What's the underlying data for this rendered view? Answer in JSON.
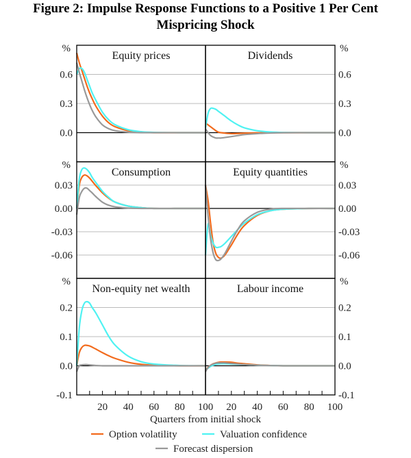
{
  "title_line1": "Figure 2: Impulse Response Functions to a Positive 1 Per Cent",
  "title_line2": "Mispricing Shock",
  "chart_data": {
    "type": "line",
    "unit_label": "%",
    "xlabel": "Quarters from initial shock",
    "xlim": [
      0,
      100
    ],
    "xticks": [
      20,
      40,
      60,
      80,
      100
    ],
    "x": [
      0,
      2,
      4,
      6,
      8,
      10,
      12,
      15,
      20,
      25,
      30,
      40,
      50,
      60,
      80,
      100
    ],
    "legend_position": "bottom",
    "series_meta": [
      {
        "name": "Option volatility",
        "color": "#f26b1d"
      },
      {
        "name": "Valuation confidence",
        "color": "#4ff2f2"
      },
      {
        "name": "Forecast dispersion",
        "color": "#999999"
      }
    ],
    "rows": [
      {
        "ylim": [
          -0.3,
          0.9
        ],
        "yticks": [
          0.6,
          0.3,
          0.0
        ],
        "ytick_labels": [
          "0.6",
          "0.3",
          "0.0"
        ]
      },
      {
        "ylim": [
          -0.09,
          0.06
        ],
        "yticks": [
          0.03,
          0.0,
          -0.03,
          -0.06
        ],
        "ytick_labels": [
          "0.03",
          "0.00",
          "-0.03",
          "-0.06"
        ]
      },
      {
        "ylim": [
          -0.1,
          0.3
        ],
        "yticks": [
          0.2,
          0.1,
          0.0,
          -0.1
        ],
        "ytick_labels": [
          "0.2",
          "0.1",
          "0.0",
          "-0.1"
        ]
      }
    ],
    "panels": [
      {
        "title": "Equity prices",
        "row": 0,
        "col": 0,
        "series": [
          [
            0.82,
            0.72,
            0.64,
            0.56,
            0.48,
            0.41,
            0.35,
            0.27,
            0.17,
            0.1,
            0.06,
            0.02,
            0.005,
            0,
            0,
            0
          ],
          [
            0.6,
            0.66,
            0.66,
            0.62,
            0.55,
            0.48,
            0.41,
            0.33,
            0.21,
            0.13,
            0.08,
            0.03,
            0.01,
            0.003,
            0,
            0
          ],
          [
            0.72,
            0.62,
            0.53,
            0.44,
            0.36,
            0.29,
            0.23,
            0.16,
            0.08,
            0.04,
            0.02,
            0.005,
            0,
            0,
            0,
            0
          ]
        ]
      },
      {
        "title": "Dividends",
        "row": 0,
        "col": 1,
        "series": [
          [
            0.1,
            0.08,
            0.06,
            0.04,
            0.02,
            0.005,
            0,
            -0.005,
            -0.01,
            -0.008,
            -0.005,
            -0.002,
            0,
            0,
            0,
            0
          ],
          [
            0.05,
            0.2,
            0.25,
            0.25,
            0.24,
            0.22,
            0.2,
            0.17,
            0.12,
            0.08,
            0.05,
            0.02,
            0.007,
            0.002,
            0,
            0
          ],
          [
            0.04,
            0.0,
            -0.03,
            -0.045,
            -0.055,
            -0.055,
            -0.055,
            -0.05,
            -0.04,
            -0.03,
            -0.02,
            -0.01,
            -0.004,
            -0.001,
            0,
            0
          ]
        ]
      },
      {
        "title": "Consumption",
        "row": 1,
        "col": 0,
        "series": [
          [
            0,
            0.03,
            0.04,
            0.043,
            0.042,
            0.039,
            0.035,
            0.029,
            0.02,
            0.013,
            0.008,
            0.003,
            0.001,
            0,
            0,
            0
          ],
          [
            0,
            0.038,
            0.05,
            0.052,
            0.05,
            0.046,
            0.04,
            0.033,
            0.022,
            0.014,
            0.008,
            0.003,
            0.001,
            0,
            0,
            0
          ],
          [
            -0.008,
            0.014,
            0.022,
            0.026,
            0.026,
            0.023,
            0.02,
            0.015,
            0.008,
            0.004,
            0.002,
            0.0005,
            0,
            0,
            0,
            0
          ]
        ]
      },
      {
        "title": "Equity quantities",
        "row": 1,
        "col": 1,
        "series": [
          [
            0.03,
            0.01,
            -0.02,
            -0.045,
            -0.058,
            -0.063,
            -0.064,
            -0.06,
            -0.047,
            -0.033,
            -0.022,
            -0.009,
            -0.003,
            -0.001,
            0,
            0
          ],
          [
            -0.06,
            -0.02,
            -0.035,
            -0.045,
            -0.05,
            -0.05,
            -0.049,
            -0.045,
            -0.036,
            -0.027,
            -0.019,
            -0.008,
            -0.003,
            -0.001,
            0,
            0
          ],
          [
            0.03,
            -0.01,
            -0.04,
            -0.058,
            -0.066,
            -0.067,
            -0.065,
            -0.058,
            -0.042,
            -0.027,
            -0.016,
            -0.005,
            -0.001,
            0,
            0,
            0
          ]
        ]
      },
      {
        "title": "Non-equity net wealth",
        "row": 2,
        "col": 0,
        "series": [
          [
            0,
            0.045,
            0.063,
            0.07,
            0.07,
            0.068,
            0.064,
            0.057,
            0.045,
            0.034,
            0.025,
            0.012,
            0.005,
            0.002,
            0,
            0
          ],
          [
            0,
            0.13,
            0.19,
            0.215,
            0.22,
            0.215,
            0.2,
            0.18,
            0.14,
            0.1,
            0.07,
            0.033,
            0.014,
            0.006,
            0.001,
            0
          ],
          [
            -0.02,
            0,
            0.003,
            0.004,
            0.004,
            0.003,
            0.002,
            0.001,
            0,
            0,
            0,
            0,
            0,
            0,
            0,
            0
          ]
        ]
      },
      {
        "title": "Labour income",
        "row": 2,
        "col": 1,
        "series": [
          [
            -0.015,
            -0.005,
            0.002,
            0.007,
            0.01,
            0.012,
            0.013,
            0.013,
            0.012,
            0.009,
            0.007,
            0.003,
            0.001,
            0,
            0,
            0
          ],
          [
            -0.015,
            -0.008,
            -0.002,
            0.002,
            0.005,
            0.006,
            0.007,
            0.007,
            0.006,
            0.005,
            0.004,
            0.002,
            0.001,
            0,
            0,
            0
          ],
          [
            -0.02,
            -0.006,
            0.002,
            0.006,
            0.009,
            0.01,
            0.01,
            0.01,
            0.008,
            0.006,
            0.004,
            0.002,
            0.001,
            0,
            0,
            0
          ]
        ]
      }
    ]
  }
}
